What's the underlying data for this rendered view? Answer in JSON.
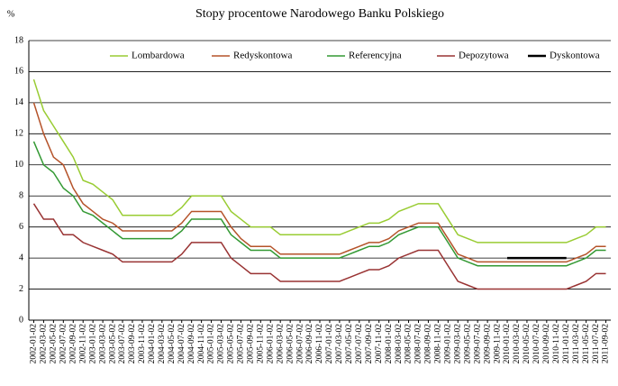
{
  "chart_data": {
    "type": "line",
    "title": "Stopy procentowe Narodowego Banku Polskiego",
    "y_label": "%",
    "categories": [
      "2002-01-02",
      "2002-03-02",
      "2002-05-02",
      "2002-07-02",
      "2002-09-02",
      "2002-11-02",
      "2003-01-02",
      "2003-03-02",
      "2003-05-02",
      "2003-07-02",
      "2003-09-02",
      "2003-11-02",
      "2004-01-02",
      "2004-03-02",
      "2004-05-02",
      "2004-07-02",
      "2004-09-02",
      "2004-11-02",
      "2005-01-02",
      "2005-03-02",
      "2005-05-02",
      "2005-07-02",
      "2005-09-02",
      "2005-11-02",
      "2006-01-02",
      "2006-03-02",
      "2006-05-02",
      "2006-07-02",
      "2006-09-02",
      "2006-11-02",
      "2007-01-02",
      "2007-03-02",
      "2007-05-02",
      "2007-07-02",
      "2007-09-02",
      "2007-11-02",
      "2008-01-02",
      "2008-03-02",
      "2008-05-02",
      "2008-07-02",
      "2008-09-02",
      "2008-11-02",
      "2009-01-02",
      "2009-03-02",
      "2009-05-02",
      "2009-07-02",
      "2009-09-02",
      "2009-11-02",
      "2010-01-02",
      "2010-03-02",
      "2010-05-02",
      "2010-07-02",
      "2010-09-02",
      "2010-11-02",
      "2011-01-02",
      "2011-03-02",
      "2011-05-02",
      "2011-07-02",
      "2011-09-02"
    ],
    "series": [
      {
        "name": "Lombardowa",
        "color": "#99cc33",
        "values": [
          15.5,
          13.5,
          12.5,
          11.5,
          10.5,
          9,
          8.75,
          8.25,
          7.75,
          6.75,
          6.75,
          6.75,
          6.75,
          6.75,
          6.75,
          7.25,
          8,
          8,
          8,
          8,
          7,
          6.5,
          6,
          6,
          6,
          5.5,
          5.5,
          5.5,
          5.5,
          5.5,
          5.5,
          5.5,
          5.75,
          6,
          6.25,
          6.25,
          6.5,
          7,
          7.25,
          7.5,
          7.5,
          7.5,
          6.5,
          5.5,
          5.25,
          5,
          5,
          5,
          5,
          5,
          5,
          5,
          5,
          5,
          5,
          5.25,
          5.5,
          6,
          6
        ]
      },
      {
        "name": "Redyskontowa",
        "color": "#b5532a",
        "values": [
          14,
          12,
          10.5,
          10,
          8.5,
          7.5,
          7,
          6.5,
          6.25,
          5.75,
          5.75,
          5.75,
          5.75,
          5.75,
          5.75,
          6.25,
          7,
          7,
          7,
          7,
          6,
          5.25,
          4.75,
          4.75,
          4.75,
          4.25,
          4.25,
          4.25,
          4.25,
          4.25,
          4.25,
          4.25,
          4.5,
          4.75,
          5,
          5,
          5.25,
          5.75,
          6,
          6.25,
          6.25,
          6.25,
          5.25,
          4.25,
          4,
          3.75,
          3.75,
          3.75,
          3.75,
          3.75,
          3.75,
          3.75,
          3.75,
          3.75,
          3.75,
          4,
          4.25,
          4.75,
          4.75
        ]
      },
      {
        "name": "Referencyjna",
        "color": "#339933",
        "values": [
          11.5,
          10,
          9.5,
          8.5,
          8,
          7,
          6.75,
          6.25,
          5.75,
          5.25,
          5.25,
          5.25,
          5.25,
          5.25,
          5.25,
          5.75,
          6.5,
          6.5,
          6.5,
          6.5,
          5.5,
          5,
          4.5,
          4.5,
          4.5,
          4,
          4,
          4,
          4,
          4,
          4,
          4,
          4.25,
          4.5,
          4.75,
          4.75,
          5,
          5.5,
          5.75,
          6,
          6,
          6,
          5,
          4,
          3.75,
          3.5,
          3.5,
          3.5,
          3.5,
          3.5,
          3.5,
          3.5,
          3.5,
          3.5,
          3.5,
          3.75,
          4,
          4.5,
          4.5
        ]
      },
      {
        "name": "Depozytowa",
        "color": "#993333",
        "values": [
          7.5,
          6.5,
          6.5,
          5.5,
          5.5,
          5,
          4.75,
          4.5,
          4.25,
          3.75,
          3.75,
          3.75,
          3.75,
          3.75,
          3.75,
          4.25,
          5,
          5,
          5,
          5,
          4,
          3.5,
          3,
          3,
          3,
          2.5,
          2.5,
          2.5,
          2.5,
          2.5,
          2.5,
          2.5,
          2.75,
          3,
          3.25,
          3.25,
          3.5,
          4,
          4.25,
          4.5,
          4.5,
          4.5,
          3.5,
          2.5,
          2.25,
          2,
          2,
          2,
          2,
          2,
          2,
          2,
          2,
          2,
          2,
          2.25,
          2.5,
          3,
          3
        ]
      },
      {
        "name": "Dyskontowa",
        "color": "#000000",
        "values": [
          null,
          null,
          null,
          null,
          null,
          null,
          null,
          null,
          null,
          null,
          null,
          null,
          null,
          null,
          null,
          null,
          null,
          null,
          null,
          null,
          null,
          null,
          null,
          null,
          null,
          null,
          null,
          null,
          null,
          null,
          null,
          null,
          null,
          null,
          null,
          null,
          null,
          null,
          null,
          null,
          null,
          null,
          null,
          null,
          null,
          null,
          null,
          null,
          4,
          4,
          4,
          4,
          4,
          4,
          4,
          null,
          null,
          null,
          null
        ]
      }
    ],
    "ylim": [
      0,
      18
    ],
    "yticks": [
      0,
      2,
      4,
      6,
      8,
      10,
      12,
      14,
      16,
      18
    ],
    "grid": true,
    "legend": "top"
  }
}
